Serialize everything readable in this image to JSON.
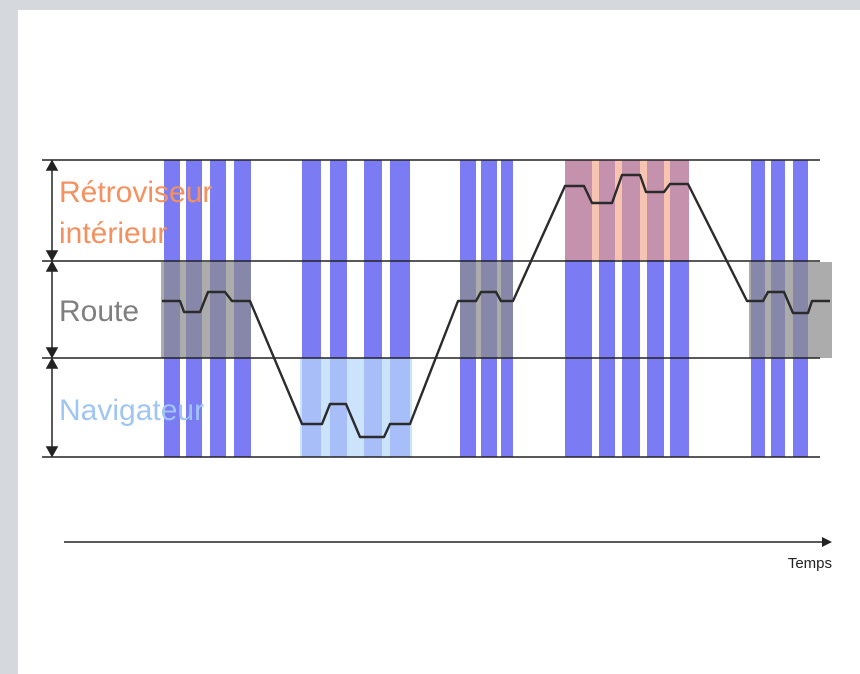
{
  "lanes": [
    {
      "id": "mirror",
      "lines": [
        "Rétroviseur",
        "intérieur"
      ],
      "color": "#f4915e"
    },
    {
      "id": "road",
      "lines": [
        "Route"
      ],
      "color": "#7f7f7f"
    },
    {
      "id": "navigator",
      "lines": [
        "Navigateur"
      ],
      "color": "#9fc6f3"
    }
  ],
  "axis": {
    "label": "Temps"
  },
  "colors": {
    "bar": "#7b7bf4",
    "line": "#2b2b2b",
    "road_highlight": "#8c8c8c",
    "mirror_highlight": "#f0a080",
    "navigator_highlight": "#b8d8fb"
  }
}
